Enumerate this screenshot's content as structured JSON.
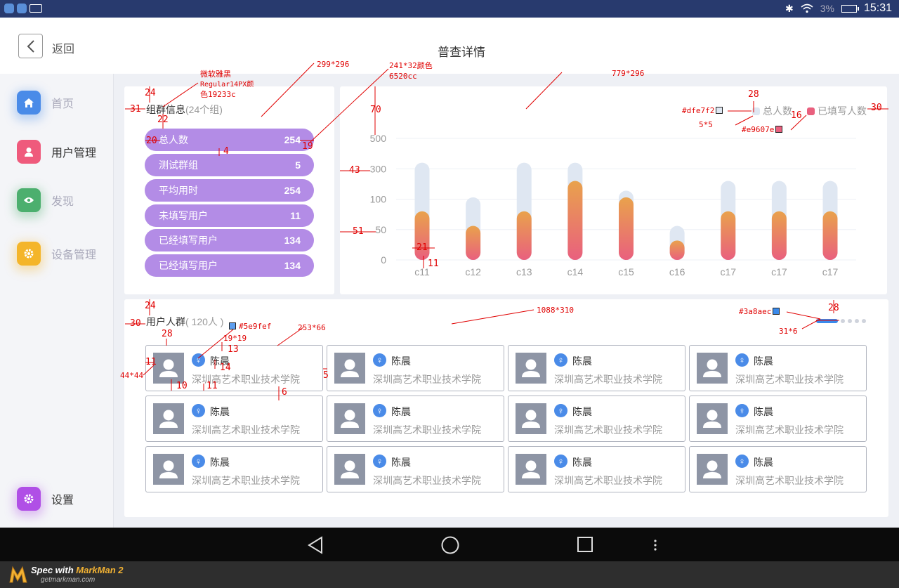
{
  "status_bar": {
    "battery": "3%",
    "time": "15:31"
  },
  "header": {
    "back_label": "返回",
    "title": "普查详情"
  },
  "sidebar": {
    "items": [
      {
        "label": "首页",
        "icon": "home-icon",
        "color": "#4a8be8"
      },
      {
        "label": "用户管理",
        "icon": "user-icon",
        "color": "#ef5a7c"
      },
      {
        "label": "发现",
        "icon": "eye-icon",
        "color": "#4caf6e"
      },
      {
        "label": "设备管理",
        "icon": "gear-icon",
        "color": "#f4b52a"
      },
      {
        "label": "设置",
        "icon": "gear-icon",
        "color": "#b04fe6"
      }
    ]
  },
  "group_info": {
    "title": "组群信息",
    "subtitle": "(24个组)",
    "stats": [
      {
        "label": "总人数",
        "value": "254"
      },
      {
        "label": "测试群组",
        "value": "5"
      },
      {
        "label": "平均用时",
        "value": "254"
      },
      {
        "label": "未填写用户",
        "value": "11"
      },
      {
        "label": "已经填写用户",
        "value": "134"
      },
      {
        "label": "已经填写用户",
        "value": "134"
      }
    ]
  },
  "chart_data": {
    "type": "bar",
    "categories": [
      "c11",
      "c12",
      "c13",
      "c14",
      "c15",
      "c16",
      "c17",
      "c17",
      "c17"
    ],
    "series": [
      {
        "name": "总人数",
        "values": [
          160,
          103,
          160,
          160,
          114,
          56,
          130,
          130,
          130
        ],
        "color": "#dfe7f2"
      },
      {
        "name": "已填写人数",
        "values": [
          80,
          56,
          80,
          130,
          103,
          32,
          80,
          80,
          80
        ],
        "color": "#e9607e"
      }
    ],
    "y_ticks": [
      "0",
      "50",
      "100",
      "300",
      "500"
    ],
    "grid": true,
    "legend": "top-right"
  },
  "users": {
    "title": "用户人群",
    "subtitle": "( 120人 )",
    "items": [
      {
        "name": "陈晨",
        "school": "深圳高艺术职业技术学院"
      },
      {
        "name": "陈晨",
        "school": "深圳高艺术职业技术学院"
      },
      {
        "name": "陈晨",
        "school": "深圳高艺术职业技术学院"
      },
      {
        "name": "陈晨",
        "school": "深圳高艺术职业技术学院"
      },
      {
        "name": "陈晨",
        "school": "深圳高艺术职业技术学院"
      },
      {
        "name": "陈晨",
        "school": "深圳高艺术职业技术学院"
      },
      {
        "name": "陈晨",
        "school": "深圳高艺术职业技术学院"
      },
      {
        "name": "陈晨",
        "school": "深圳高艺术职业技术学院"
      },
      {
        "name": "陈晨",
        "school": "深圳高艺术职业技术学院"
      },
      {
        "name": "陈晨",
        "school": "深圳高艺术职业技术学院"
      },
      {
        "name": "陈晨",
        "school": "深圳高艺术职业技术学院"
      },
      {
        "name": "陈晨",
        "school": "深圳高艺术职业技术学院"
      }
    ],
    "pager": {
      "pages": 5,
      "active": 1,
      "color": "#3a8aec"
    }
  },
  "footer": {
    "brand_prefix": "Spec with ",
    "brand": "MarkMan 2",
    "url": "getmarkman.com"
  },
  "annotations": {
    "font_note_1": "微软雅黑",
    "font_note_2": "Regular14PX颜",
    "font_note_3": "色19233c",
    "size_group": "299*296",
    "size_pill": "241*32颜色",
    "color_pill": "6520cc",
    "size_chart": "779*296",
    "legend_swatch_total": "#dfe7f2",
    "legend_swatch_filled": "#e9607e",
    "legend_dot": "5*5",
    "size_users": "1088*310",
    "pager_color": "#3a8aec",
    "pager_size": "31*6",
    "gender_color": "#5e9fef",
    "gender_size": "19*19",
    "user_card_size": "253*66",
    "avatar_size": "44*44",
    "m24a": "24",
    "m31": "31",
    "m22": "22",
    "m20": "20",
    "m4": "4",
    "m19": "19",
    "m70": "70",
    "m43": "43",
    "m51": "51",
    "m21": "21",
    "m11a": "11",
    "m28a": "28",
    "m16": "16",
    "m30a": "30",
    "m24b": "24",
    "m30b": "30",
    "m28b": "28",
    "m11b": "11",
    "m13": "13",
    "m14": "14",
    "m10": "10",
    "m11c": "11",
    "m6": "6",
    "m5": "5",
    "m28c": "28"
  }
}
